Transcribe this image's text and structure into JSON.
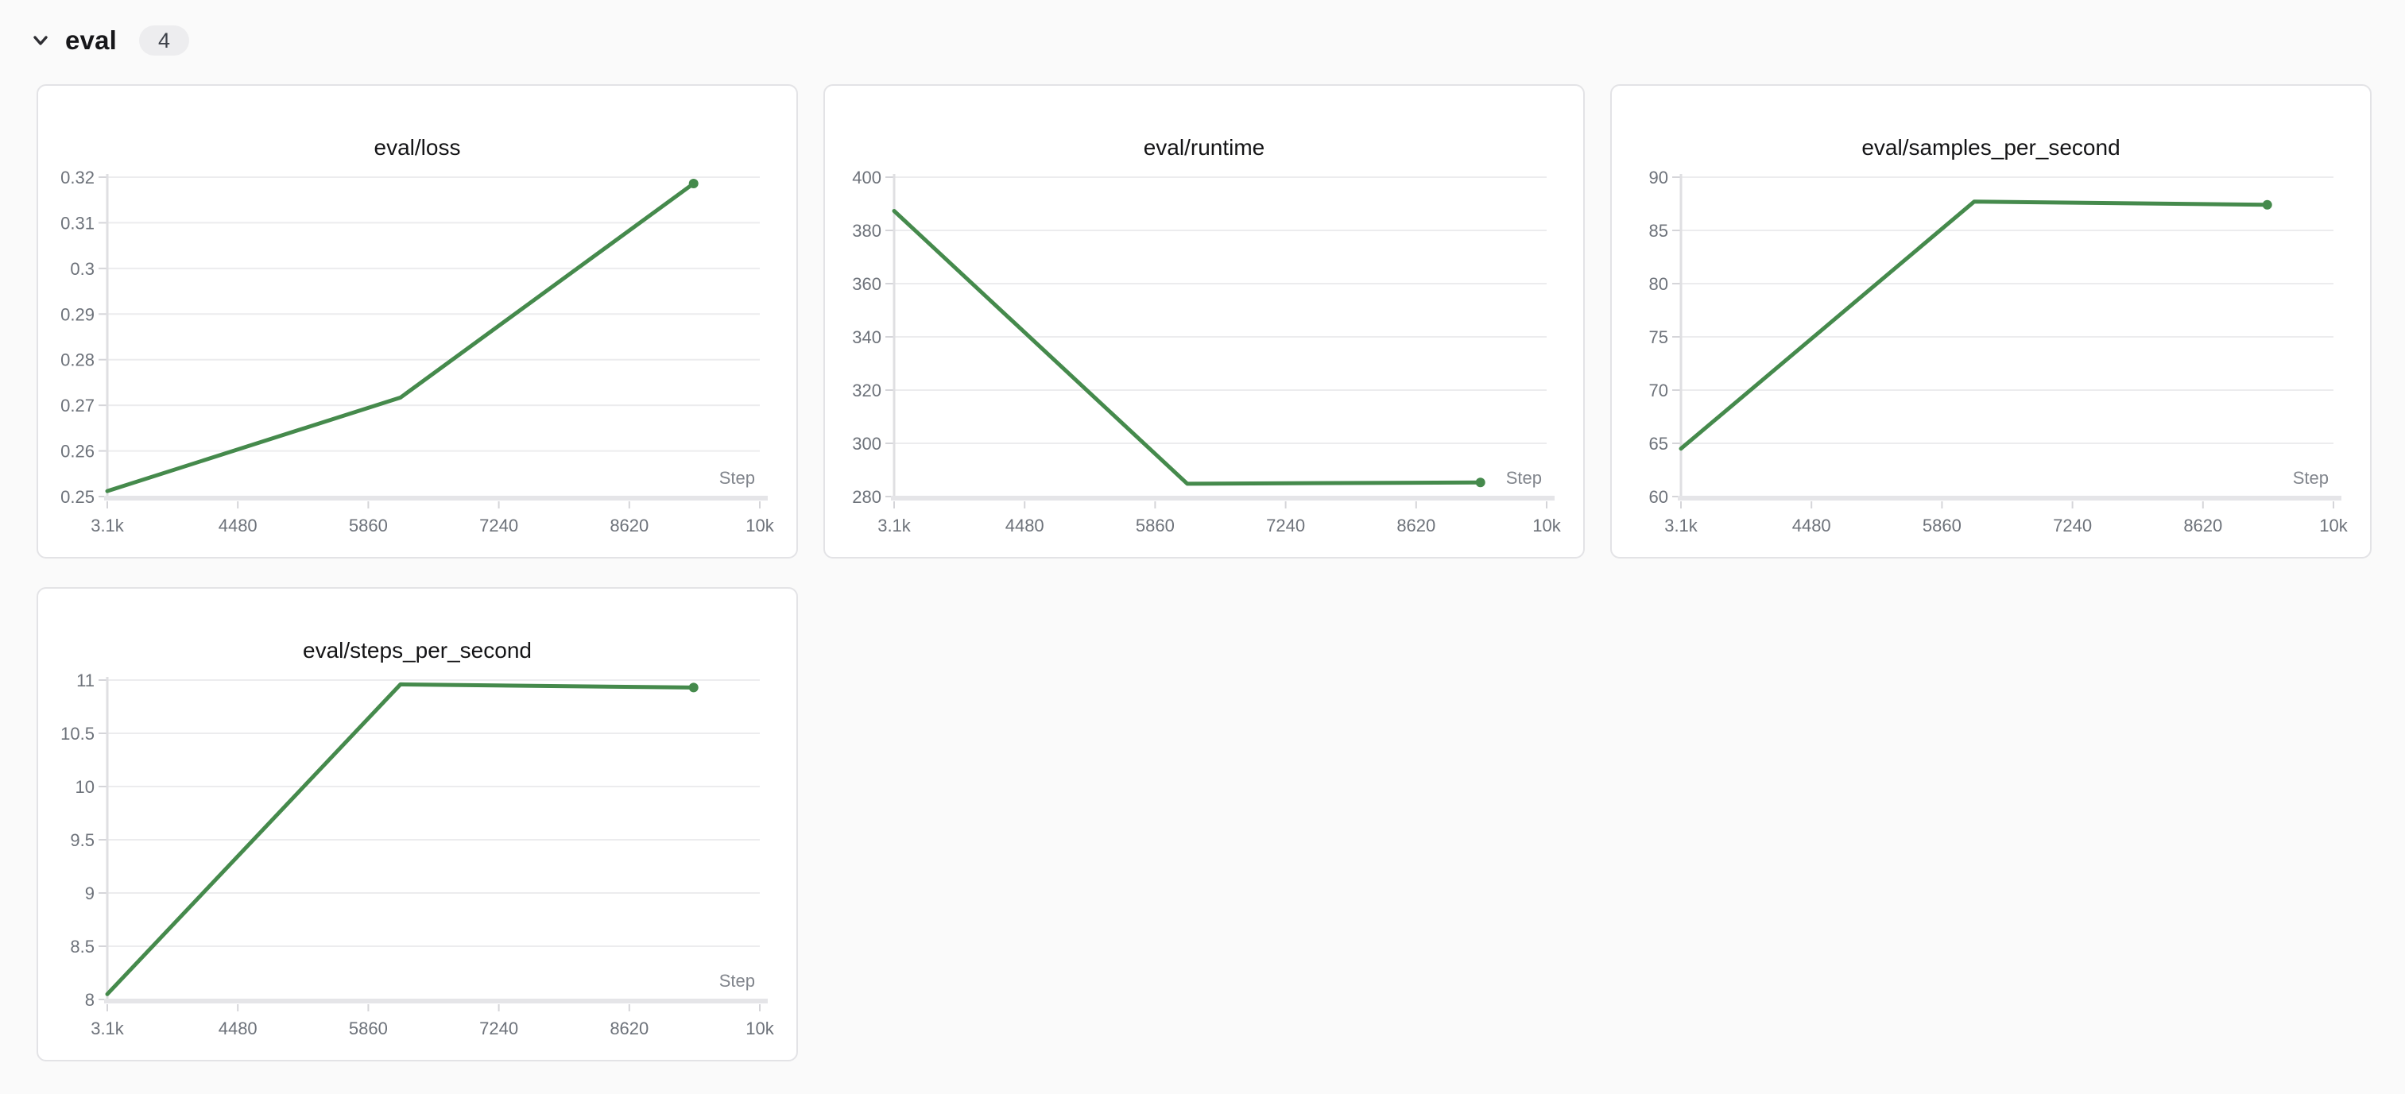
{
  "header": {
    "title": "eval",
    "badge_count": "4",
    "collapse_icon": "chevron-down-icon"
  },
  "colors": {
    "page_bg": "#fafafa",
    "card_bg": "#ffffff",
    "card_border": "#e3e3e6",
    "line_green": "#458a4c",
    "grid": "#ececee",
    "axis_line": "#dfdfe2",
    "axis_bar": "#e5e5e8",
    "tick_mark": "#d5d5d9",
    "tick_label": "#6d727a",
    "step_label": "#81858c",
    "title_text": "#141416"
  },
  "chart_data": [
    {
      "type": "line",
      "title": "eval/loss",
      "xlabel": "Step",
      "x": [
        3100,
        6200,
        9300
      ],
      "y": [
        0.2512,
        0.2717,
        0.3186
      ],
      "xlim": [
        3100,
        10000
      ],
      "ylim": [
        0.25,
        0.32
      ],
      "x_tick_values": [
        3100,
        4480,
        5860,
        7240,
        8620,
        10000
      ],
      "x_tick_labels": [
        "3.1k",
        "4480",
        "5860",
        "7240",
        "8620",
        "10k"
      ],
      "y_ticks": [
        0.25,
        0.26,
        0.27,
        0.28,
        0.29,
        0.3,
        0.31,
        0.32
      ],
      "y_tick_labels": [
        "0.25",
        "0.26",
        "0.27",
        "0.28",
        "0.29",
        "0.3",
        "0.31",
        "0.32"
      ],
      "line_color": "#458a4c",
      "grid": true,
      "end_marker": true,
      "legend": "none"
    },
    {
      "type": "line",
      "title": "eval/runtime",
      "xlabel": "Step",
      "x": [
        3100,
        6200,
        9300
      ],
      "y": [
        387.3,
        284.8,
        285.3
      ],
      "xlim": [
        3100,
        10000
      ],
      "ylim": [
        280,
        400
      ],
      "x_tick_values": [
        3100,
        4480,
        5860,
        7240,
        8620,
        10000
      ],
      "x_tick_labels": [
        "3.1k",
        "4480",
        "5860",
        "7240",
        "8620",
        "10k"
      ],
      "y_ticks": [
        280,
        300,
        320,
        340,
        360,
        380,
        400
      ],
      "y_tick_labels": [
        "280",
        "300",
        "320",
        "340",
        "360",
        "380",
        "400"
      ],
      "line_color": "#458a4c",
      "grid": true,
      "end_marker": true,
      "legend": "none"
    },
    {
      "type": "line",
      "title": "eval/samples_per_second",
      "xlabel": "Step",
      "x": [
        3100,
        6200,
        9300
      ],
      "y": [
        64.5,
        87.7,
        87.4
      ],
      "xlim": [
        3100,
        10000
      ],
      "ylim": [
        60,
        90
      ],
      "x_tick_values": [
        3100,
        4480,
        5860,
        7240,
        8620,
        10000
      ],
      "x_tick_labels": [
        "3.1k",
        "4480",
        "5860",
        "7240",
        "8620",
        "10k"
      ],
      "y_ticks": [
        60,
        65,
        70,
        75,
        80,
        85,
        90
      ],
      "y_tick_labels": [
        "60",
        "65",
        "70",
        "75",
        "80",
        "85",
        "90"
      ],
      "line_color": "#458a4c",
      "grid": true,
      "end_marker": true,
      "legend": "none"
    },
    {
      "type": "line",
      "title": "eval/steps_per_second",
      "xlabel": "Step",
      "x": [
        3100,
        6200,
        9300
      ],
      "y": [
        8.05,
        10.96,
        10.93
      ],
      "xlim": [
        3100,
        10000
      ],
      "ylim": [
        8,
        11
      ],
      "x_tick_values": [
        3100,
        4480,
        5860,
        7240,
        8620,
        10000
      ],
      "x_tick_labels": [
        "3.1k",
        "4480",
        "5860",
        "7240",
        "8620",
        "10k"
      ],
      "y_ticks": [
        8,
        8.5,
        9,
        9.5,
        10,
        10.5,
        11
      ],
      "y_tick_labels": [
        "8",
        "8.5",
        "9",
        "9.5",
        "10",
        "10.5",
        "11"
      ],
      "line_color": "#458a4c",
      "grid": true,
      "end_marker": true,
      "legend": "none"
    }
  ]
}
